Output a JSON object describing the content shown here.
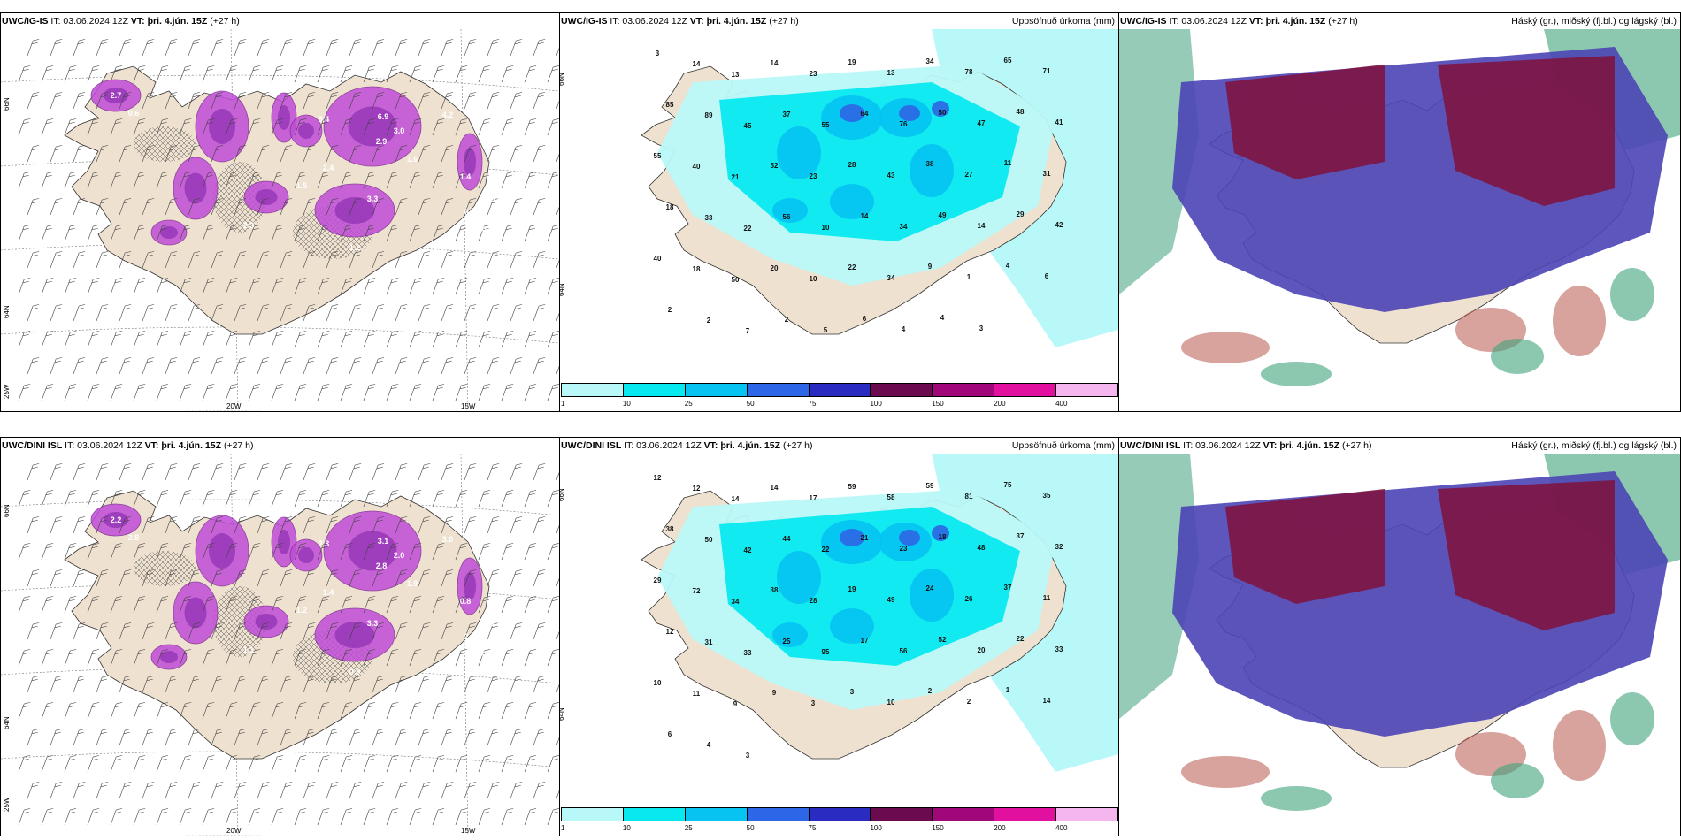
{
  "colors": {
    "land": "#efe1d0",
    "magenta": "#c04cd8",
    "precip_scale": [
      "#b9f8f8",
      "#07e9ef",
      "#06c3f2",
      "#2d66e6",
      "#2a2bc0",
      "#6c0a4f",
      "#a0087a",
      "#e2109f",
      "#f5b6f0"
    ],
    "cloud_high": "#7d1441",
    "cloud_mid": "#4b44b5",
    "cloud_low": "#3fa37b"
  },
  "colorbar": {
    "labels": [
      "1",
      "10",
      "25",
      "50",
      "75",
      "100",
      "150",
      "200",
      "400"
    ]
  },
  "rows": [
    {
      "model": "UWC/IG-IS",
      "it": "IT: 03.06.2024 12Z",
      "vt_label": "VT:",
      "vt": "þri. 4.jún. 15Z",
      "lead": "(+27 h)",
      "lat_labels": [
        "66N",
        "64N"
      ],
      "lon_labels": [
        "25W",
        "20W",
        "15W"
      ],
      "wind_values": [
        "2.7",
        "0.6",
        "6.9",
        "3.0",
        "2.9",
        "1.6",
        "4.2",
        "2.4",
        "3.3",
        "5.4",
        "1.4",
        "0.5",
        "2.7",
        "1.2",
        "0.7",
        "0.9",
        "1.5",
        "2.3"
      ],
      "precip_title": "Uppsöfnuð úrkoma (mm)",
      "precip_values": [
        "3",
        "14",
        "13",
        "14",
        "23",
        "19",
        "13",
        "34",
        "78",
        "65",
        "71",
        "85",
        "89",
        "45",
        "37",
        "55",
        "64",
        "76",
        "50",
        "47",
        "48",
        "41",
        "55",
        "40",
        "21",
        "52",
        "23",
        "28",
        "43",
        "38",
        "27",
        "11",
        "31",
        "18",
        "33",
        "22",
        "56",
        "10",
        "14",
        "34",
        "49",
        "14",
        "29",
        "42",
        "40",
        "18",
        "50",
        "20",
        "10",
        "22",
        "34",
        "9",
        "1",
        "4",
        "6",
        "2",
        "2",
        "7",
        "2",
        "5",
        "6",
        "4",
        "4",
        "3"
      ],
      "cloud_title": "Háský (gr.), miðský (fj.bl.) og lágský (bl.)"
    },
    {
      "model": "UWC/DINI ISL",
      "it": "IT: 03.06.2024 12Z",
      "vt_label": "VT:",
      "vt": "þri. 4.jún. 15Z",
      "lead": "(+27 h)",
      "lat_labels": [
        "66N",
        "64N"
      ],
      "lon_labels": [
        "25W",
        "20W",
        "15W"
      ],
      "wind_values": [
        "2.2",
        "2.8",
        "3.1",
        "2.0",
        "2.8",
        "1.9",
        "3.0",
        "1.4",
        "3.3",
        "2.3",
        "0.8",
        "1.5",
        "0.4",
        "0.9",
        "2.7",
        "0.5",
        "1.2",
        "1.1"
      ],
      "precip_title": "Uppsöfnuð úrkoma (mm)",
      "precip_values": [
        "12",
        "12",
        "14",
        "14",
        "17",
        "59",
        "58",
        "59",
        "81",
        "75",
        "35",
        "38",
        "50",
        "42",
        "44",
        "22",
        "21",
        "23",
        "18",
        "48",
        "37",
        "32",
        "29",
        "72",
        "34",
        "38",
        "28",
        "19",
        "49",
        "24",
        "26",
        "37",
        "11",
        "12",
        "31",
        "33",
        "25",
        "95",
        "17",
        "56",
        "52",
        "20",
        "22",
        "33",
        "10",
        "11",
        "9",
        "9",
        "3",
        "3",
        "10",
        "2",
        "2",
        "1",
        "14",
        "6",
        "4",
        "3"
      ],
      "cloud_title": "Háský (gr.), miðský (fj.bl.) og lágský (bl.)"
    }
  ]
}
